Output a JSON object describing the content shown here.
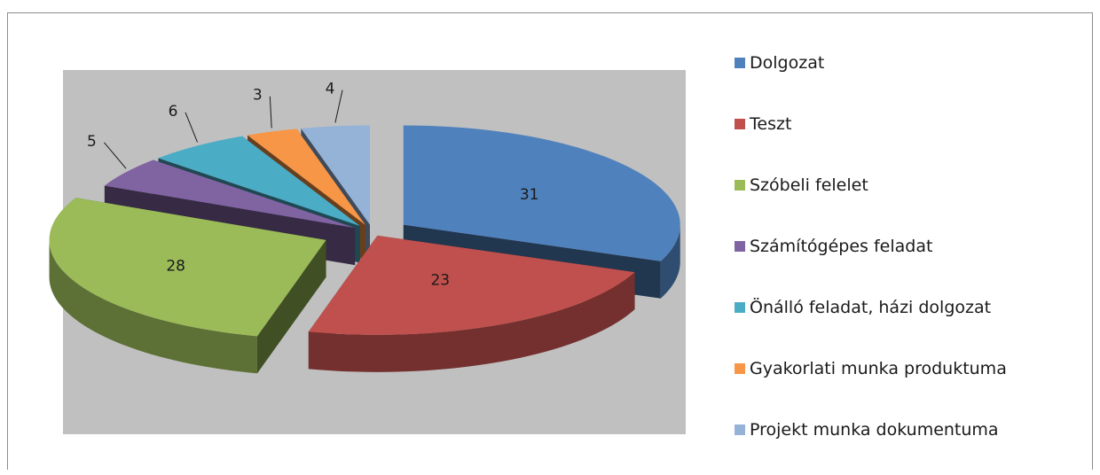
{
  "chart_data": {
    "type": "pie",
    "style": "3d-exploded",
    "categories": [
      "Dolgozat",
      "Teszt",
      "Szóbeli felelet",
      "Számítógépes feladat",
      "Önálló feladat, házi dolgozat",
      "Gyakorlati munka produktuma",
      "Projekt munka dokumentuma"
    ],
    "values": [
      31,
      23,
      28,
      5,
      6,
      3,
      4
    ],
    "colors": [
      "#4f81bd",
      "#c0504d",
      "#9bbb59",
      "#8064a2",
      "#4bacc6",
      "#f79646",
      "#95b3d7"
    ],
    "data_labels": [
      "31",
      "23",
      "28",
      "5",
      "6",
      "3",
      "4"
    ],
    "legend_position": "right"
  }
}
